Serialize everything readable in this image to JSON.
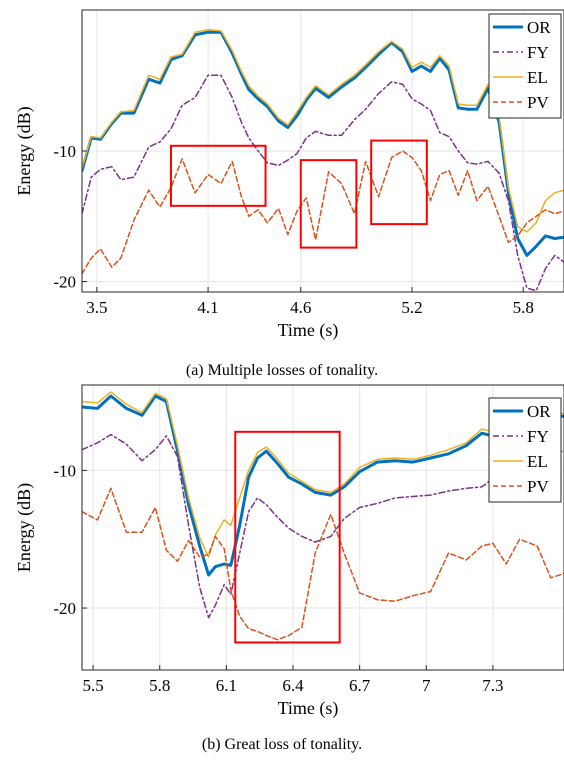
{
  "chart_data": [
    {
      "type": "line",
      "panel": "a",
      "caption": "(a) Multiple losses of tonality.",
      "xlabel": "Time (s)",
      "ylabel": "Energy (dB)",
      "xlim": [
        3.42,
        6.02
      ],
      "ylim": [
        -20.8,
        0.8
      ],
      "xticks": [
        3.5,
        4.1,
        4.6,
        5.2,
        5.8
      ],
      "xtick_labels": [
        "3.5",
        "4.1",
        "4.6",
        "5.2",
        "5.8"
      ],
      "yticks": [
        -10,
        -20
      ],
      "ytick_labels": [
        "-10",
        "-20"
      ],
      "grid": true,
      "legend_placement": "top-right",
      "series": [
        {
          "name": "OR",
          "color": "#0072BD",
          "dash": "solid",
          "width": 3,
          "x": [
            3.42,
            3.47,
            3.52,
            3.58,
            3.63,
            3.7,
            3.78,
            3.84,
            3.9,
            3.96,
            4.03,
            4.1,
            4.17,
            4.23,
            4.28,
            4.32,
            4.37,
            4.42,
            4.48,
            4.53,
            4.58,
            4.63,
            4.68,
            4.75,
            4.82,
            4.89,
            4.95,
            5.02,
            5.09,
            5.15,
            5.2,
            5.25,
            5.3,
            5.35,
            5.4,
            5.45,
            5.5,
            5.55,
            5.61,
            5.67,
            5.72,
            5.77,
            5.82,
            5.87,
            5.92,
            5.97,
            6.02
          ],
          "y": [
            -11.5,
            -9.0,
            -9.1,
            -7.9,
            -7.1,
            -7.1,
            -4.5,
            -4.8,
            -3.0,
            -2.7,
            -1.1,
            -0.9,
            -0.9,
            -2.5,
            -4.1,
            -5.3,
            -6.0,
            -6.6,
            -7.7,
            -8.2,
            -7.3,
            -6.1,
            -5.2,
            -5.9,
            -5.1,
            -4.4,
            -3.6,
            -2.6,
            -1.7,
            -2.4,
            -3.9,
            -3.5,
            -3.9,
            -2.9,
            -3.8,
            -6.7,
            -6.8,
            -6.8,
            -5.2,
            -7.8,
            -13.2,
            -16.7,
            -18.0,
            -17.3,
            -16.5,
            -16.7,
            -16.6
          ]
        },
        {
          "name": "FY",
          "color": "#7E2F8E",
          "dash": "dashdot",
          "width": 1.5,
          "x": [
            3.42,
            3.47,
            3.52,
            3.58,
            3.63,
            3.7,
            3.78,
            3.84,
            3.9,
            3.96,
            4.03,
            4.1,
            4.17,
            4.23,
            4.28,
            4.32,
            4.37,
            4.42,
            4.48,
            4.53,
            4.58,
            4.63,
            4.68,
            4.75,
            4.82,
            4.89,
            4.95,
            5.02,
            5.09,
            5.15,
            5.2,
            5.25,
            5.3,
            5.35,
            5.4,
            5.45,
            5.5,
            5.55,
            5.61,
            5.67,
            5.72,
            5.77,
            5.82,
            5.87,
            5.92,
            5.97,
            6.02
          ],
          "y": [
            -14.8,
            -12.0,
            -11.4,
            -11.2,
            -12.2,
            -12.0,
            -9.7,
            -9.3,
            -8.3,
            -6.5,
            -5.9,
            -4.2,
            -4.2,
            -5.9,
            -7.8,
            -9.0,
            -10.0,
            -10.9,
            -11.1,
            -10.7,
            -10.2,
            -9.0,
            -8.5,
            -8.8,
            -8.8,
            -7.6,
            -6.8,
            -5.6,
            -4.7,
            -4.9,
            -6.0,
            -6.4,
            -6.9,
            -8.6,
            -8.9,
            -10.0,
            -10.9,
            -11.0,
            -10.8,
            -11.7,
            -13.8,
            -18.0,
            -20.5,
            -20.7,
            -19.0,
            -18.0,
            -18.5
          ]
        },
        {
          "name": "EL",
          "color": "#EDB120",
          "dash": "solid",
          "width": 1.5,
          "x": [
            3.42,
            3.47,
            3.52,
            3.58,
            3.63,
            3.7,
            3.78,
            3.84,
            3.9,
            3.96,
            4.03,
            4.1,
            4.17,
            4.23,
            4.28,
            4.32,
            4.37,
            4.42,
            4.48,
            4.53,
            4.58,
            4.63,
            4.68,
            4.75,
            4.82,
            4.89,
            4.95,
            5.02,
            5.09,
            5.15,
            5.2,
            5.25,
            5.3,
            5.35,
            5.4,
            5.45,
            5.5,
            5.55,
            5.61,
            5.67,
            5.72,
            5.77,
            5.82,
            5.87,
            5.92,
            5.97,
            6.02
          ],
          "y": [
            -11.3,
            -8.9,
            -9.0,
            -7.8,
            -7.0,
            -6.9,
            -4.2,
            -4.5,
            -2.8,
            -2.6,
            -0.9,
            -0.7,
            -0.8,
            -2.3,
            -3.9,
            -5.0,
            -5.8,
            -6.4,
            -7.5,
            -8.0,
            -7.0,
            -5.9,
            -5.0,
            -5.7,
            -4.9,
            -4.2,
            -3.4,
            -2.4,
            -1.6,
            -2.2,
            -3.6,
            -3.2,
            -3.6,
            -2.7,
            -3.5,
            -6.4,
            -6.5,
            -6.5,
            -4.9,
            -7.4,
            -12.8,
            -15.8,
            -16.2,
            -15.5,
            -13.8,
            -13.2,
            -13.0
          ]
        },
        {
          "name": "PV",
          "color": "#D95319",
          "dash": "dashed",
          "width": 1.5,
          "x": [
            3.42,
            3.47,
            3.52,
            3.58,
            3.63,
            3.7,
            3.78,
            3.84,
            3.9,
            3.96,
            4.03,
            4.1,
            4.17,
            4.23,
            4.28,
            4.32,
            4.37,
            4.42,
            4.48,
            4.53,
            4.58,
            4.63,
            4.68,
            4.75,
            4.82,
            4.89,
            4.95,
            5.02,
            5.09,
            5.15,
            5.2,
            5.25,
            5.3,
            5.35,
            5.4,
            5.45,
            5.5,
            5.55,
            5.61,
            5.67,
            5.72,
            5.77,
            5.82,
            5.87,
            5.92,
            5.97,
            6.02
          ],
          "y": [
            -19.4,
            -18.2,
            -17.5,
            -18.9,
            -18.2,
            -15.3,
            -13.0,
            -14.3,
            -12.8,
            -10.6,
            -13.2,
            -11.8,
            -12.5,
            -10.8,
            -13.5,
            -15.0,
            -14.5,
            -15.5,
            -14.4,
            -16.4,
            -14.6,
            -13.6,
            -16.8,
            -11.6,
            -12.5,
            -14.8,
            -10.8,
            -13.5,
            -10.5,
            -10.0,
            -10.5,
            -11.5,
            -13.8,
            -11.8,
            -11.5,
            -13.4,
            -11.5,
            -13.8,
            -12.7,
            -15.0,
            -17.0,
            -16.5,
            -15.5,
            -15.0,
            -14.5,
            -14.8,
            -14.6
          ]
        }
      ],
      "highlight_boxes": [
        {
          "x": [
            3.9,
            4.41
          ],
          "y": [
            -14.2,
            -9.6
          ]
        },
        {
          "x": [
            4.6,
            4.9
          ],
          "y": [
            -17.4,
            -10.7
          ]
        },
        {
          "x": [
            4.98,
            5.28
          ],
          "y": [
            -15.6,
            -9.2
          ]
        }
      ]
    },
    {
      "type": "line",
      "panel": "b",
      "caption": "(b) Great loss of tonality.",
      "xlabel": "Time (s)",
      "ylabel": "Energy (dB)",
      "xlim": [
        5.45,
        7.62
      ],
      "ylim": [
        -24.5,
        -3.8
      ],
      "xticks": [
        5.5,
        5.8,
        6.1,
        6.4,
        6.7,
        7.0,
        7.3
      ],
      "xtick_labels": [
        "5.5",
        "5.8",
        "6.1",
        "6.4",
        "6.7",
        "7",
        "7.3"
      ],
      "yticks": [
        -10,
        -20
      ],
      "ytick_labels": [
        "-10",
        "-20"
      ],
      "grid": true,
      "legend_placement": "top-right",
      "series": [
        {
          "name": "OR",
          "color": "#0072BD",
          "dash": "solid",
          "width": 3,
          "x": [
            5.45,
            5.52,
            5.58,
            5.65,
            5.72,
            5.78,
            5.83,
            5.88,
            5.93,
            5.98,
            6.02,
            6.05,
            6.09,
            6.12,
            6.16,
            6.2,
            6.24,
            6.28,
            6.33,
            6.38,
            6.44,
            6.5,
            6.57,
            6.63,
            6.7,
            6.78,
            6.86,
            6.94,
            7.02,
            7.1,
            7.18,
            7.25,
            7.3,
            7.36,
            7.42,
            7.5,
            7.56,
            7.62
          ],
          "y": [
            -5.4,
            -5.5,
            -4.6,
            -5.5,
            -6.0,
            -4.6,
            -5.0,
            -8.6,
            -12.5,
            -15.5,
            -17.6,
            -17.0,
            -16.8,
            -16.9,
            -14.0,
            -10.5,
            -9.1,
            -8.6,
            -9.5,
            -10.5,
            -11.0,
            -11.6,
            -11.8,
            -11.2,
            -10.1,
            -9.4,
            -9.3,
            -9.4,
            -9.1,
            -8.8,
            -8.2,
            -7.3,
            -7.5,
            -7.1,
            -6.3,
            -5.9,
            -5.8,
            -6.1
          ]
        },
        {
          "name": "FY",
          "color": "#7E2F8E",
          "dash": "dashdot",
          "width": 1.5,
          "x": [
            5.45,
            5.52,
            5.58,
            5.65,
            5.72,
            5.78,
            5.83,
            5.88,
            5.93,
            5.98,
            6.02,
            6.05,
            6.09,
            6.12,
            6.16,
            6.2,
            6.24,
            6.28,
            6.33,
            6.38,
            6.44,
            6.5,
            6.57,
            6.63,
            6.7,
            6.78,
            6.86,
            6.94,
            7.02,
            7.1,
            7.18,
            7.25,
            7.3,
            7.36,
            7.42,
            7.5,
            7.56,
            7.62
          ],
          "y": [
            -8.5,
            -8.0,
            -7.4,
            -8.1,
            -9.3,
            -8.5,
            -7.5,
            -9.0,
            -14.0,
            -18.5,
            -20.7,
            -19.8,
            -18.3,
            -19.0,
            -16.0,
            -13.0,
            -12.0,
            -12.5,
            -13.4,
            -14.2,
            -14.8,
            -15.2,
            -14.8,
            -13.5,
            -12.7,
            -12.4,
            -12.0,
            -11.9,
            -11.8,
            -11.5,
            -11.3,
            -11.2,
            -10.6,
            -10.2,
            -9.6,
            -9.0,
            -8.8,
            -8.6
          ]
        },
        {
          "name": "EL",
          "color": "#EDB120",
          "dash": "solid",
          "width": 1.5,
          "x": [
            5.45,
            5.52,
            5.58,
            5.65,
            5.72,
            5.78,
            5.83,
            5.88,
            5.93,
            5.98,
            6.02,
            6.05,
            6.09,
            6.12,
            6.16,
            6.2,
            6.24,
            6.28,
            6.33,
            6.38,
            6.44,
            6.5,
            6.57,
            6.63,
            6.7,
            6.78,
            6.86,
            6.94,
            7.02,
            7.1,
            7.18,
            7.25,
            7.3,
            7.36,
            7.42,
            7.5,
            7.56,
            7.62
          ],
          "y": [
            -5.0,
            -5.1,
            -4.3,
            -5.2,
            -5.8,
            -4.4,
            -4.8,
            -8.2,
            -12.0,
            -14.9,
            -16.3,
            -14.7,
            -13.6,
            -14.0,
            -12.0,
            -10.0,
            -8.7,
            -8.3,
            -9.2,
            -10.2,
            -10.8,
            -11.4,
            -11.6,
            -11.0,
            -9.8,
            -9.2,
            -9.1,
            -9.2,
            -8.9,
            -8.5,
            -8.0,
            -7.0,
            -7.2,
            -6.9,
            -6.1,
            -5.6,
            -5.6,
            -5.9
          ]
        },
        {
          "name": "PV",
          "color": "#D95319",
          "dash": "dashed",
          "width": 1.5,
          "x": [
            5.45,
            5.52,
            5.58,
            5.65,
            5.72,
            5.78,
            5.83,
            5.88,
            5.93,
            5.98,
            6.02,
            6.05,
            6.09,
            6.12,
            6.16,
            6.2,
            6.24,
            6.28,
            6.33,
            6.38,
            6.44,
            6.5,
            6.57,
            6.63,
            6.7,
            6.78,
            6.86,
            6.94,
            7.02,
            7.1,
            7.18,
            7.25,
            7.3,
            7.36,
            7.42,
            7.5,
            7.56,
            7.62
          ],
          "y": [
            -13.0,
            -13.6,
            -11.3,
            -14.5,
            -14.5,
            -12.7,
            -15.8,
            -16.6,
            -15.1,
            -16.3,
            -16.1,
            -14.8,
            -15.7,
            -18.7,
            -20.6,
            -21.5,
            -21.7,
            -22.0,
            -22.3,
            -22.0,
            -21.4,
            -16.0,
            -13.2,
            -16.0,
            -18.9,
            -19.4,
            -19.5,
            -19.1,
            -18.8,
            -16.0,
            -16.5,
            -15.5,
            -15.3,
            -16.8,
            -15.0,
            -15.5,
            -17.8,
            -17.5
          ]
        }
      ],
      "highlight_boxes": [
        {
          "x": [
            6.14,
            6.61
          ],
          "y": [
            -22.5,
            -7.2
          ]
        }
      ]
    }
  ]
}
